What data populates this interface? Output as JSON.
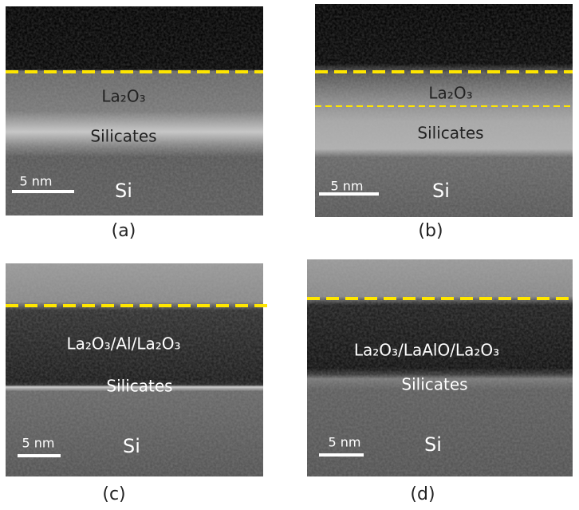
{
  "panels": [
    {
      "label": "(a)",
      "layers": [
        "La₂O₃",
        "Silicates",
        "Si"
      ],
      "scale_bar": "5 nm"
    },
    {
      "label": "(b)",
      "layers": [
        "La₂O₃",
        "Silicates",
        "Si"
      ],
      "scale_bar": "5 nm"
    },
    {
      "label": "(c)",
      "layers": [
        "La₂O₃/Al/La₂O₃",
        "Silicates",
        "Si"
      ],
      "scale_bar": "5 nm"
    },
    {
      "label": "(d)",
      "layers": [
        "La₂O₃/LaAlO/La₂O₃",
        "Silicates",
        "Si"
      ],
      "scale_bar": "5 nm"
    }
  ]
}
